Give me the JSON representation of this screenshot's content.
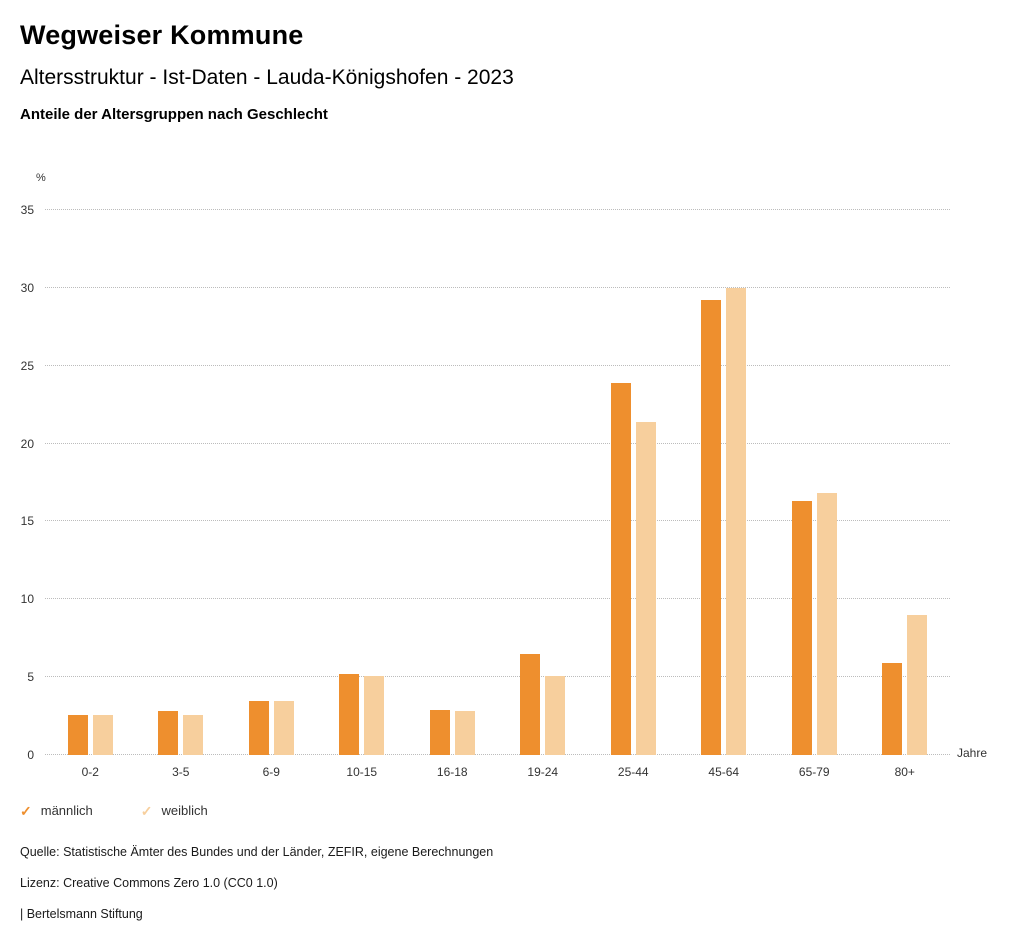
{
  "header": {
    "title": "Wegweiser Kommune",
    "subtitle": "Altersstruktur - Ist-Daten - Lauda-Königshofen - 2023",
    "chart_heading": "Anteile der Altersgruppen nach Geschlecht"
  },
  "chart_data": {
    "type": "bar",
    "title": "Anteile der Altersgruppen nach Geschlecht",
    "unit_label": "%",
    "x_unit_label": "Jahre",
    "categories": [
      "0-2",
      "3-5",
      "6-9",
      "10-15",
      "16-18",
      "19-24",
      "25-44",
      "45-64",
      "65-79",
      "80+"
    ],
    "series": [
      {
        "name": "männlich",
        "key": "maennlich",
        "color": "#ee8f2e",
        "values": [
          2.6,
          2.8,
          3.5,
          5.2,
          2.9,
          6.5,
          23.9,
          29.2,
          16.3,
          5.9
        ]
      },
      {
        "name": "weiblich",
        "key": "weiblich",
        "color": "#f7cf9d",
        "values": [
          2.6,
          2.6,
          3.5,
          5.1,
          2.8,
          5.1,
          21.4,
          30.0,
          16.8,
          9.0
        ]
      }
    ],
    "ylim": [
      0,
      35
    ],
    "yticks": [
      0,
      5,
      10,
      15,
      20,
      25,
      30,
      35
    ],
    "grid": true,
    "legend_position": "bottom"
  },
  "footer": {
    "source": "Quelle: Statistische Ämter des Bundes und der Länder, ZEFIR, eigene Berechnungen",
    "license": "Lizenz: Creative Commons Zero 1.0 (CC0 1.0)",
    "attribution": "| Bertelsmann Stiftung"
  }
}
